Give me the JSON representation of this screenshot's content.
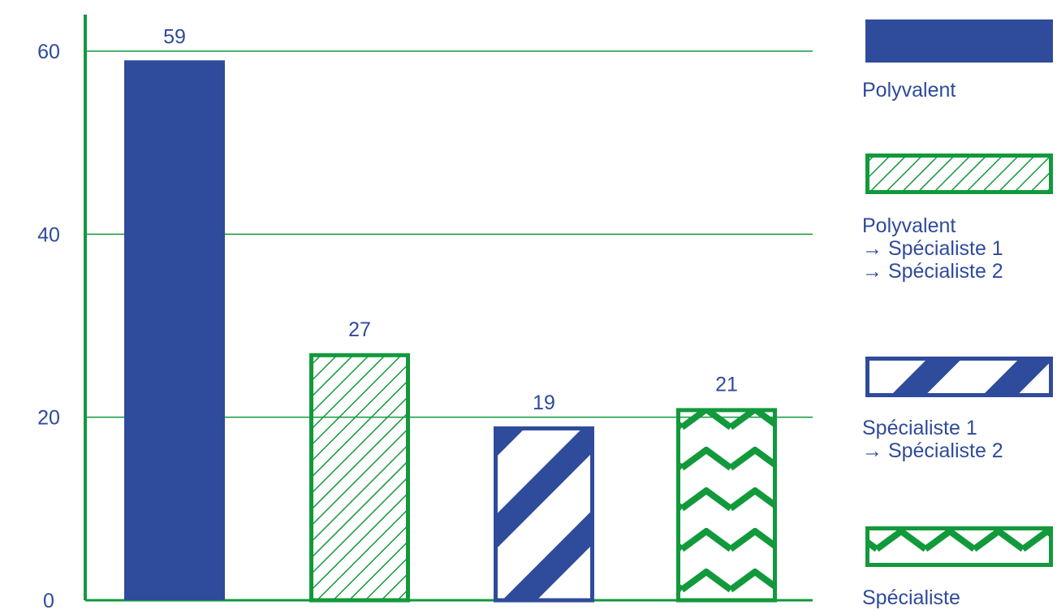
{
  "colors": {
    "blue": "#2f4b9b",
    "green": "#12993b",
    "white": "#ffffff"
  },
  "chart_data": {
    "type": "bar",
    "categories": [
      "Polyvalent",
      "Polyvalent → Spécialiste 1 → Spécialiste 2",
      "Spécialiste 1 → Spécialiste 2",
      "Spécialiste"
    ],
    "values": [
      59,
      27,
      19,
      21
    ],
    "data_labels": [
      "59",
      "27",
      "19",
      "21"
    ],
    "series_patterns": [
      "solid-blue",
      "green-diagonal-hatch",
      "blue-white-stripes",
      "green-chevrons"
    ],
    "ylim": [
      0,
      60
    ],
    "yticks": [
      0,
      20,
      40,
      60
    ],
    "ytick_labels": [
      "0",
      "20",
      "40",
      "60"
    ],
    "grid": true,
    "legend": {
      "position": "right",
      "entries": [
        {
          "label": "Polyvalent"
        },
        {
          "label": "Polyvalent\n→ Spécialiste 1\n→ Spécialiste 2"
        },
        {
          "label": "Spécialiste 1\n→ Spécialiste 2"
        },
        {
          "label": "Spécialiste"
        }
      ]
    }
  }
}
